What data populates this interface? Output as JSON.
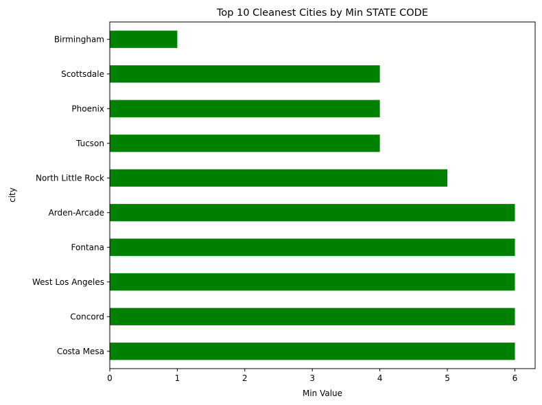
{
  "chart_data": {
    "type": "bar",
    "orientation": "horizontal",
    "title": "Top 10 Cleanest Cities by Min STATE CODE",
    "xlabel": "Min Value",
    "ylabel": "city",
    "categories": [
      "Birmingham",
      "Scottsdale",
      "Phoenix",
      "Tucson",
      "North Little Rock",
      "Arden-Arcade",
      "Fontana",
      "West Los Angeles",
      "Concord",
      "Costa Mesa"
    ],
    "values": [
      1,
      4,
      4,
      4,
      5,
      6,
      6,
      6,
      6,
      6
    ],
    "xlim": [
      0,
      6.3
    ],
    "xticks": [
      0,
      1,
      2,
      3,
      4,
      5,
      6
    ],
    "grid": false,
    "bar_color": "#008000"
  }
}
